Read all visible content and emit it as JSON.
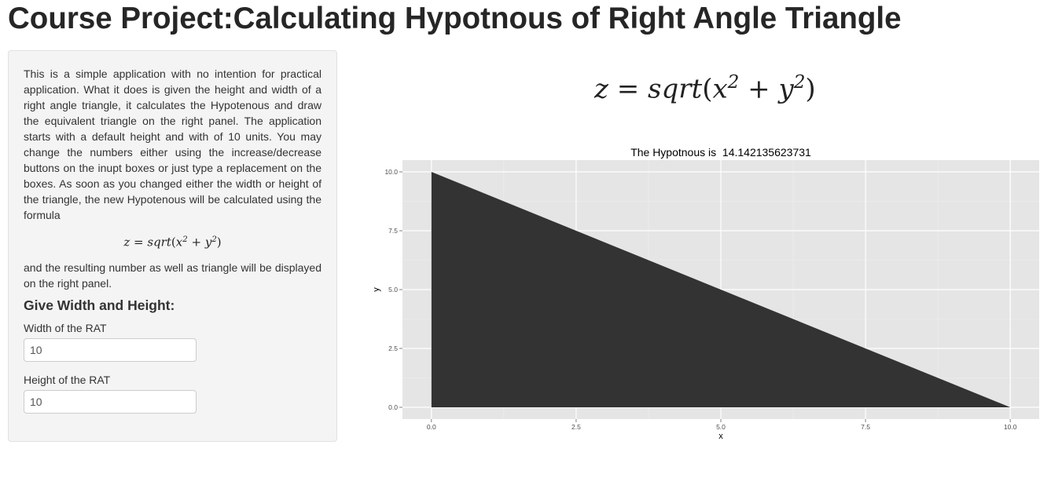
{
  "page": {
    "title": "Course Project:Calculating Hypotnous of Right Angle Triangle"
  },
  "sidebar": {
    "description": "This is a simple application with no intention for practical application. What it does is given the height and width of a right angle triangle, it calculates the Hypotenous and draw the equivalent triangle on the right panel. The application starts with a default height and with of 10 units. You may change the numbers either using the increase/decrease buttons on the inupt boxes or just type a replacement on the boxes. As soon as you changed either the width or height of the triangle, the new Hypotenous will be calculated using the formula",
    "description_after": "and the resulting number as well as triangle will be displayed on the right panel.",
    "section_heading": "Give Width and Height:",
    "width_label": "Width of the RAT",
    "width_value": "10",
    "height_label": "Height of the RAT",
    "height_value": "10"
  },
  "formula": {
    "lhs": "z",
    "eq": "=",
    "fn": "sqrt",
    "open": "(",
    "var1": "x",
    "exp": "2",
    "plus": "+",
    "var2": "y",
    "close": ")"
  },
  "chart_data": {
    "type": "area",
    "title": "The Hypotnous is  14.142135623731",
    "xlabel": "x",
    "ylabel": "y",
    "xlim": [
      -0.5,
      10.5
    ],
    "ylim": [
      -0.5,
      10.5
    ],
    "x_ticks": [
      "0.0",
      "2.5",
      "5.0",
      "7.5",
      "10.0"
    ],
    "y_ticks": [
      "0.0",
      "2.5",
      "5.0",
      "7.5",
      "10.0"
    ],
    "polygon": [
      [
        0,
        0
      ],
      [
        0,
        10
      ],
      [
        10,
        0
      ]
    ],
    "fill_color": "#333333",
    "panel_bg": "#e5e5e5",
    "grid": true
  }
}
